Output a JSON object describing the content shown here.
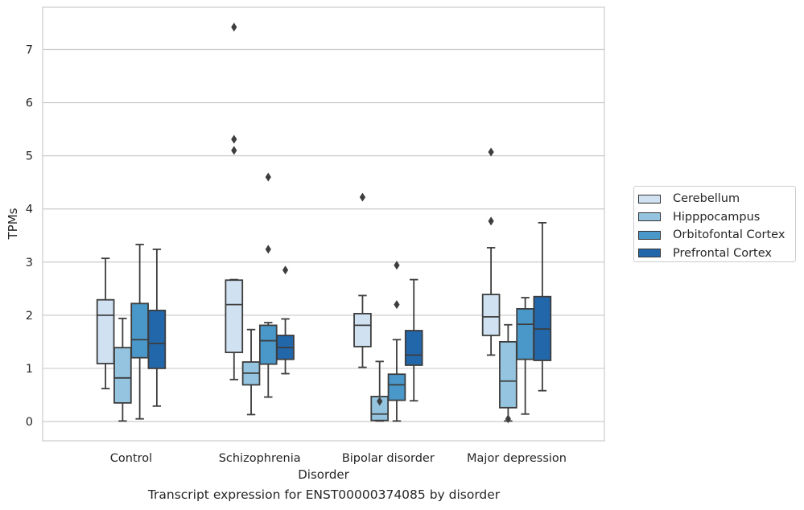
{
  "chart_data": {
    "type": "box",
    "caption": "Transcript expression for ENST00000374085 by disorder",
    "xlabel": "Disorder",
    "ylabel": "TPMs",
    "ylim": [
      -0.35,
      7.8
    ],
    "yticks": [
      0,
      1,
      2,
      3,
      4,
      5,
      6,
      7
    ],
    "grid": "horizontal",
    "legend_position": "right",
    "categories": [
      "Control",
      "Schizophrenia",
      "Bipolar disorder",
      "Major depression"
    ],
    "series": [
      {
        "name": "Cerebellum",
        "color": "#d0e1f2",
        "boxes": [
          {
            "whisker_low": 0.62,
            "q1": 1.09,
            "median": 2.0,
            "q3": 2.29,
            "whisker_high": 3.07,
            "outliers": []
          },
          {
            "whisker_low": 0.79,
            "q1": 1.3,
            "median": 2.2,
            "q3": 2.66,
            "whisker_high": 2.67,
            "outliers": [
              7.42,
              5.31,
              5.1
            ]
          },
          {
            "whisker_low": 1.02,
            "q1": 1.41,
            "median": 1.81,
            "q3": 2.03,
            "whisker_high": 2.37,
            "outliers": [
              4.22
            ]
          },
          {
            "whisker_low": 1.25,
            "q1": 1.62,
            "median": 1.97,
            "q3": 2.39,
            "whisker_high": 3.27,
            "outliers": [
              5.07,
              3.77
            ]
          }
        ]
      },
      {
        "name": "Hipppocampus",
        "color": "#94c4df",
        "boxes": [
          {
            "whisker_low": 0.01,
            "q1": 0.35,
            "median": 0.82,
            "q3": 1.39,
            "whisker_high": 1.94,
            "outliers": []
          },
          {
            "whisker_low": 0.13,
            "q1": 0.69,
            "median": 0.91,
            "q3": 1.12,
            "whisker_high": 1.73,
            "outliers": []
          },
          {
            "whisker_low": 0.01,
            "q1": 0.02,
            "median": 0.14,
            "q3": 0.47,
            "whisker_high": 1.13,
            "outliers": [
              0.38
            ]
          },
          {
            "whisker_low": 0.01,
            "q1": 0.26,
            "median": 0.76,
            "q3": 1.5,
            "whisker_high": 1.82,
            "outliers": [
              0.05
            ]
          }
        ]
      },
      {
        "name": "Orbitofontal Cortex",
        "color": "#4a98c9",
        "boxes": [
          {
            "whisker_low": 0.05,
            "q1": 1.2,
            "median": 1.54,
            "q3": 2.22,
            "whisker_high": 3.33,
            "outliers": []
          },
          {
            "whisker_low": 0.46,
            "q1": 1.08,
            "median": 1.52,
            "q3": 1.81,
            "whisker_high": 1.86,
            "outliers": [
              4.6,
              3.24
            ]
          },
          {
            "whisker_low": 0.01,
            "q1": 0.4,
            "median": 0.69,
            "q3": 0.89,
            "whisker_high": 1.54,
            "outliers": [
              2.94,
              2.2
            ]
          },
          {
            "whisker_low": 0.14,
            "q1": 1.17,
            "median": 1.83,
            "q3": 2.12,
            "whisker_high": 2.33,
            "outliers": []
          }
        ]
      },
      {
        "name": "Prefrontal Cortex",
        "color": "#2367ab",
        "boxes": [
          {
            "whisker_low": 0.29,
            "q1": 1.0,
            "median": 1.47,
            "q3": 2.09,
            "whisker_high": 3.24,
            "outliers": []
          },
          {
            "whisker_low": 0.9,
            "q1": 1.17,
            "median": 1.39,
            "q3": 1.62,
            "whisker_high": 1.93,
            "outliers": [
              2.85
            ]
          },
          {
            "whisker_low": 0.39,
            "q1": 1.06,
            "median": 1.25,
            "q3": 1.71,
            "whisker_high": 2.67,
            "outliers": []
          },
          {
            "whisker_low": 0.58,
            "q1": 1.15,
            "median": 1.74,
            "q3": 2.35,
            "whisker_high": 3.74,
            "outliers": []
          }
        ]
      }
    ]
  }
}
